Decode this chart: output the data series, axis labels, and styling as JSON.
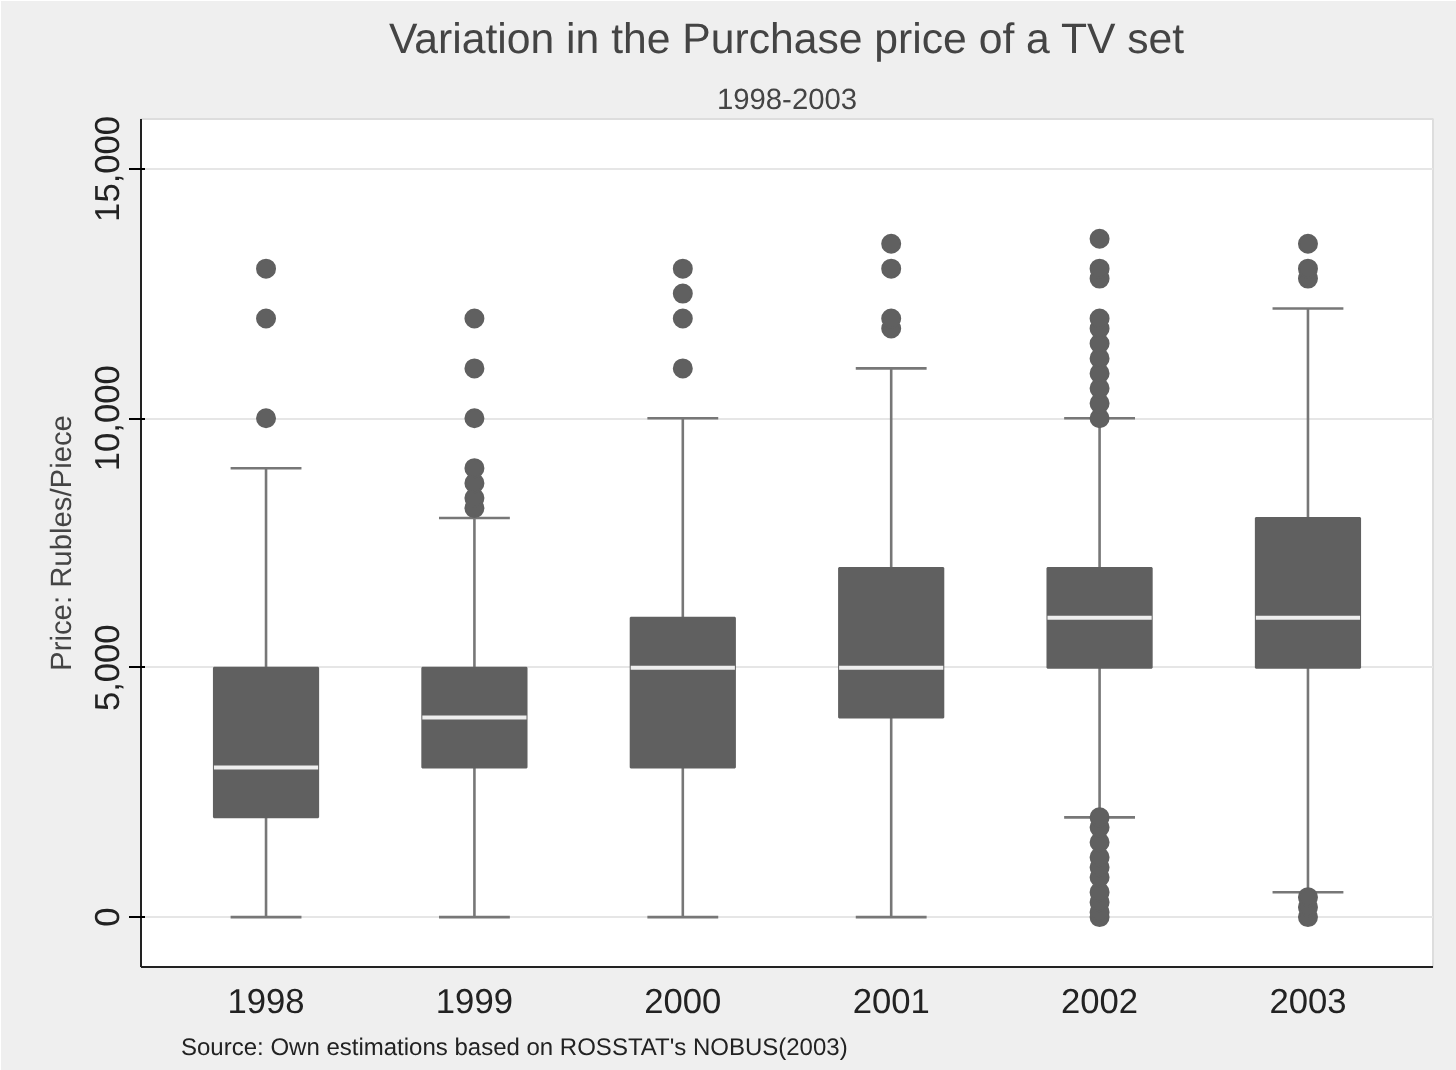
{
  "chart_data": {
    "type": "box",
    "title": "Variation in the Purchase price of a TV set",
    "subtitle": "1998-2003",
    "ylabel": "Price: Rubles/Piece",
    "annotations": [
      "Source:  Own estimations based on ROSSTAT's NOBUS(2003)"
    ],
    "categories": [
      "1998",
      "1999",
      "2000",
      "2001",
      "2002",
      "2003"
    ],
    "color": "#606060",
    "ylim": [
      -1000,
      16000
    ],
    "yticks": [
      {
        "value": 0,
        "label": "0"
      },
      {
        "value": 5000,
        "label": "5,000"
      },
      {
        "value": 10000,
        "label": "10,000"
      },
      {
        "value": 15000,
        "label": "15,000"
      }
    ],
    "grid": "y",
    "marker": "circle",
    "boxes": [
      {
        "low": 0,
        "q1": 2000,
        "median": 3000,
        "q3": 5000,
        "high": 9000,
        "outliers": [
          10000,
          12000,
          13000
        ]
      },
      {
        "low": 0,
        "q1": 3000,
        "median": 4000,
        "q3": 5000,
        "high": 8000,
        "outliers": [
          8200,
          8400,
          8700,
          9000,
          10000,
          11000,
          12000
        ]
      },
      {
        "low": 0,
        "q1": 3000,
        "median": 5000,
        "q3": 6000,
        "high": 10000,
        "outliers": [
          11000,
          12000,
          12500,
          13000
        ]
      },
      {
        "low": 0,
        "q1": 4000,
        "median": 5000,
        "q3": 7000,
        "high": 11000,
        "outliers": [
          11800,
          12000,
          13000,
          13500
        ]
      },
      {
        "low": 2000,
        "q1": 5000,
        "median": 6000,
        "q3": 7000,
        "high": 10000,
        "outliers": [
          0,
          100,
          300,
          500,
          800,
          1000,
          1200,
          1500,
          1800,
          2000,
          10000,
          10300,
          10600,
          10900,
          11200,
          11500,
          11800,
          12000,
          12800,
          13000,
          13600
        ]
      },
      {
        "low": 500,
        "q1": 5000,
        "median": 6000,
        "q3": 8000,
        "high": 12200,
        "outliers": [
          0,
          200,
          400,
          12800,
          13000,
          13500
        ]
      }
    ]
  }
}
